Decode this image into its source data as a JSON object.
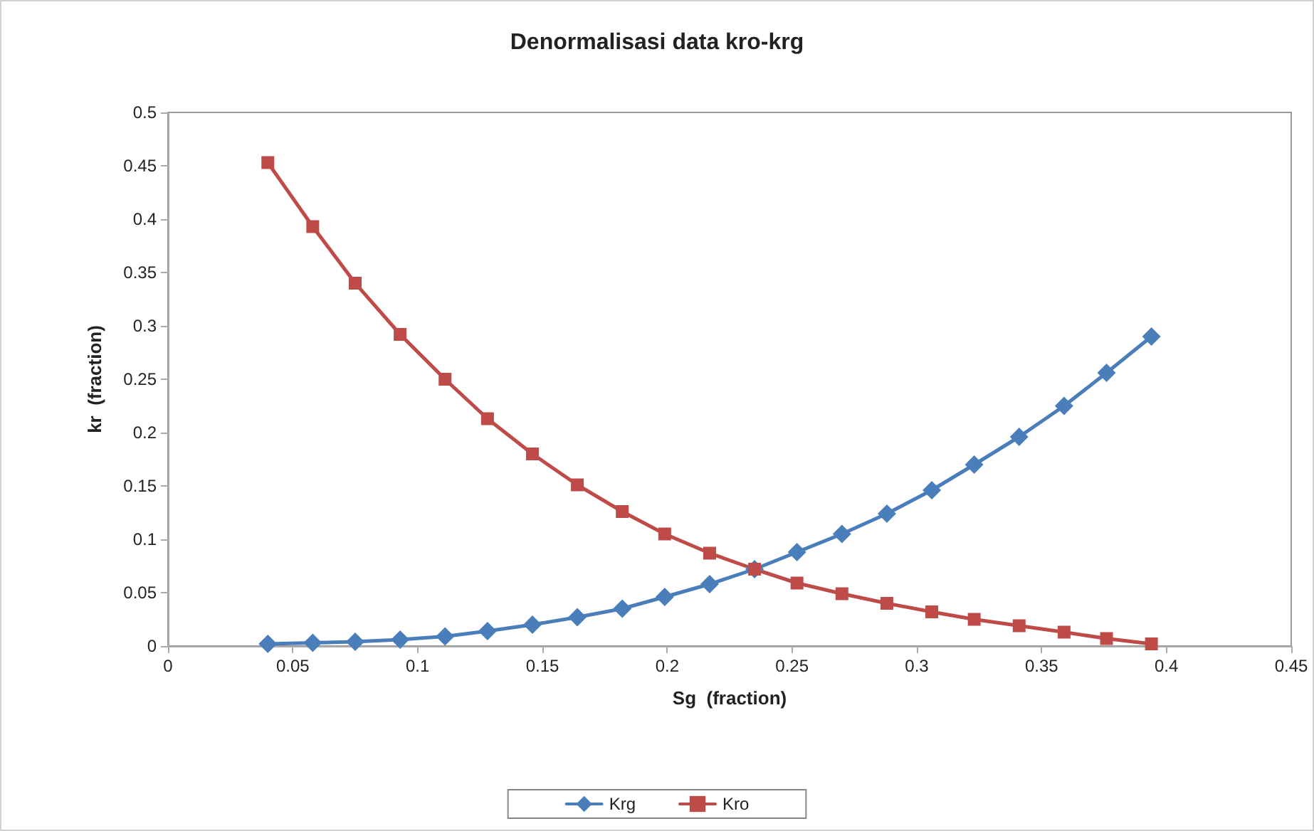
{
  "chart_data": {
    "type": "line",
    "title": "Denormalisasi data kro-krg",
    "xlabel": "Sg  (fraction)",
    "ylabel": "kr  (fraction)",
    "x": [
      0.04,
      0.058,
      0.075,
      0.093,
      0.111,
      0.128,
      0.146,
      0.164,
      0.182,
      0.199,
      0.217,
      0.235,
      0.252,
      0.27,
      0.288,
      0.306,
      0.323,
      0.341,
      0.359,
      0.376,
      0.394
    ],
    "series": [
      {
        "name": "Krg",
        "color": "#4a7ebb",
        "marker": "diamond",
        "values": [
          0.002,
          0.003,
          0.004,
          0.006,
          0.009,
          0.014,
          0.02,
          0.027,
          0.035,
          0.046,
          0.058,
          0.072,
          0.088,
          0.105,
          0.124,
          0.146,
          0.17,
          0.196,
          0.225,
          0.256,
          0.29
        ]
      },
      {
        "name": "Kro",
        "color": "#be4b48",
        "marker": "square",
        "values": [
          0.453,
          0.393,
          0.34,
          0.292,
          0.25,
          0.213,
          0.18,
          0.151,
          0.126,
          0.105,
          0.087,
          0.072,
          0.059,
          0.049,
          0.04,
          0.032,
          0.025,
          0.019,
          0.013,
          0.007,
          0.002
        ]
      }
    ],
    "xlim": [
      0,
      0.45
    ],
    "xticks": [
      0,
      0.05,
      0.1,
      0.15,
      0.2,
      0.25,
      0.3,
      0.35,
      0.4,
      0.45
    ],
    "ylim": [
      0,
      0.5
    ],
    "yticks": [
      0,
      0.05,
      0.1,
      0.15,
      0.2,
      0.25,
      0.3,
      0.35,
      0.4,
      0.45,
      0.5
    ],
    "grid": false,
    "legend": "bottom",
    "line_style": "solid"
  }
}
